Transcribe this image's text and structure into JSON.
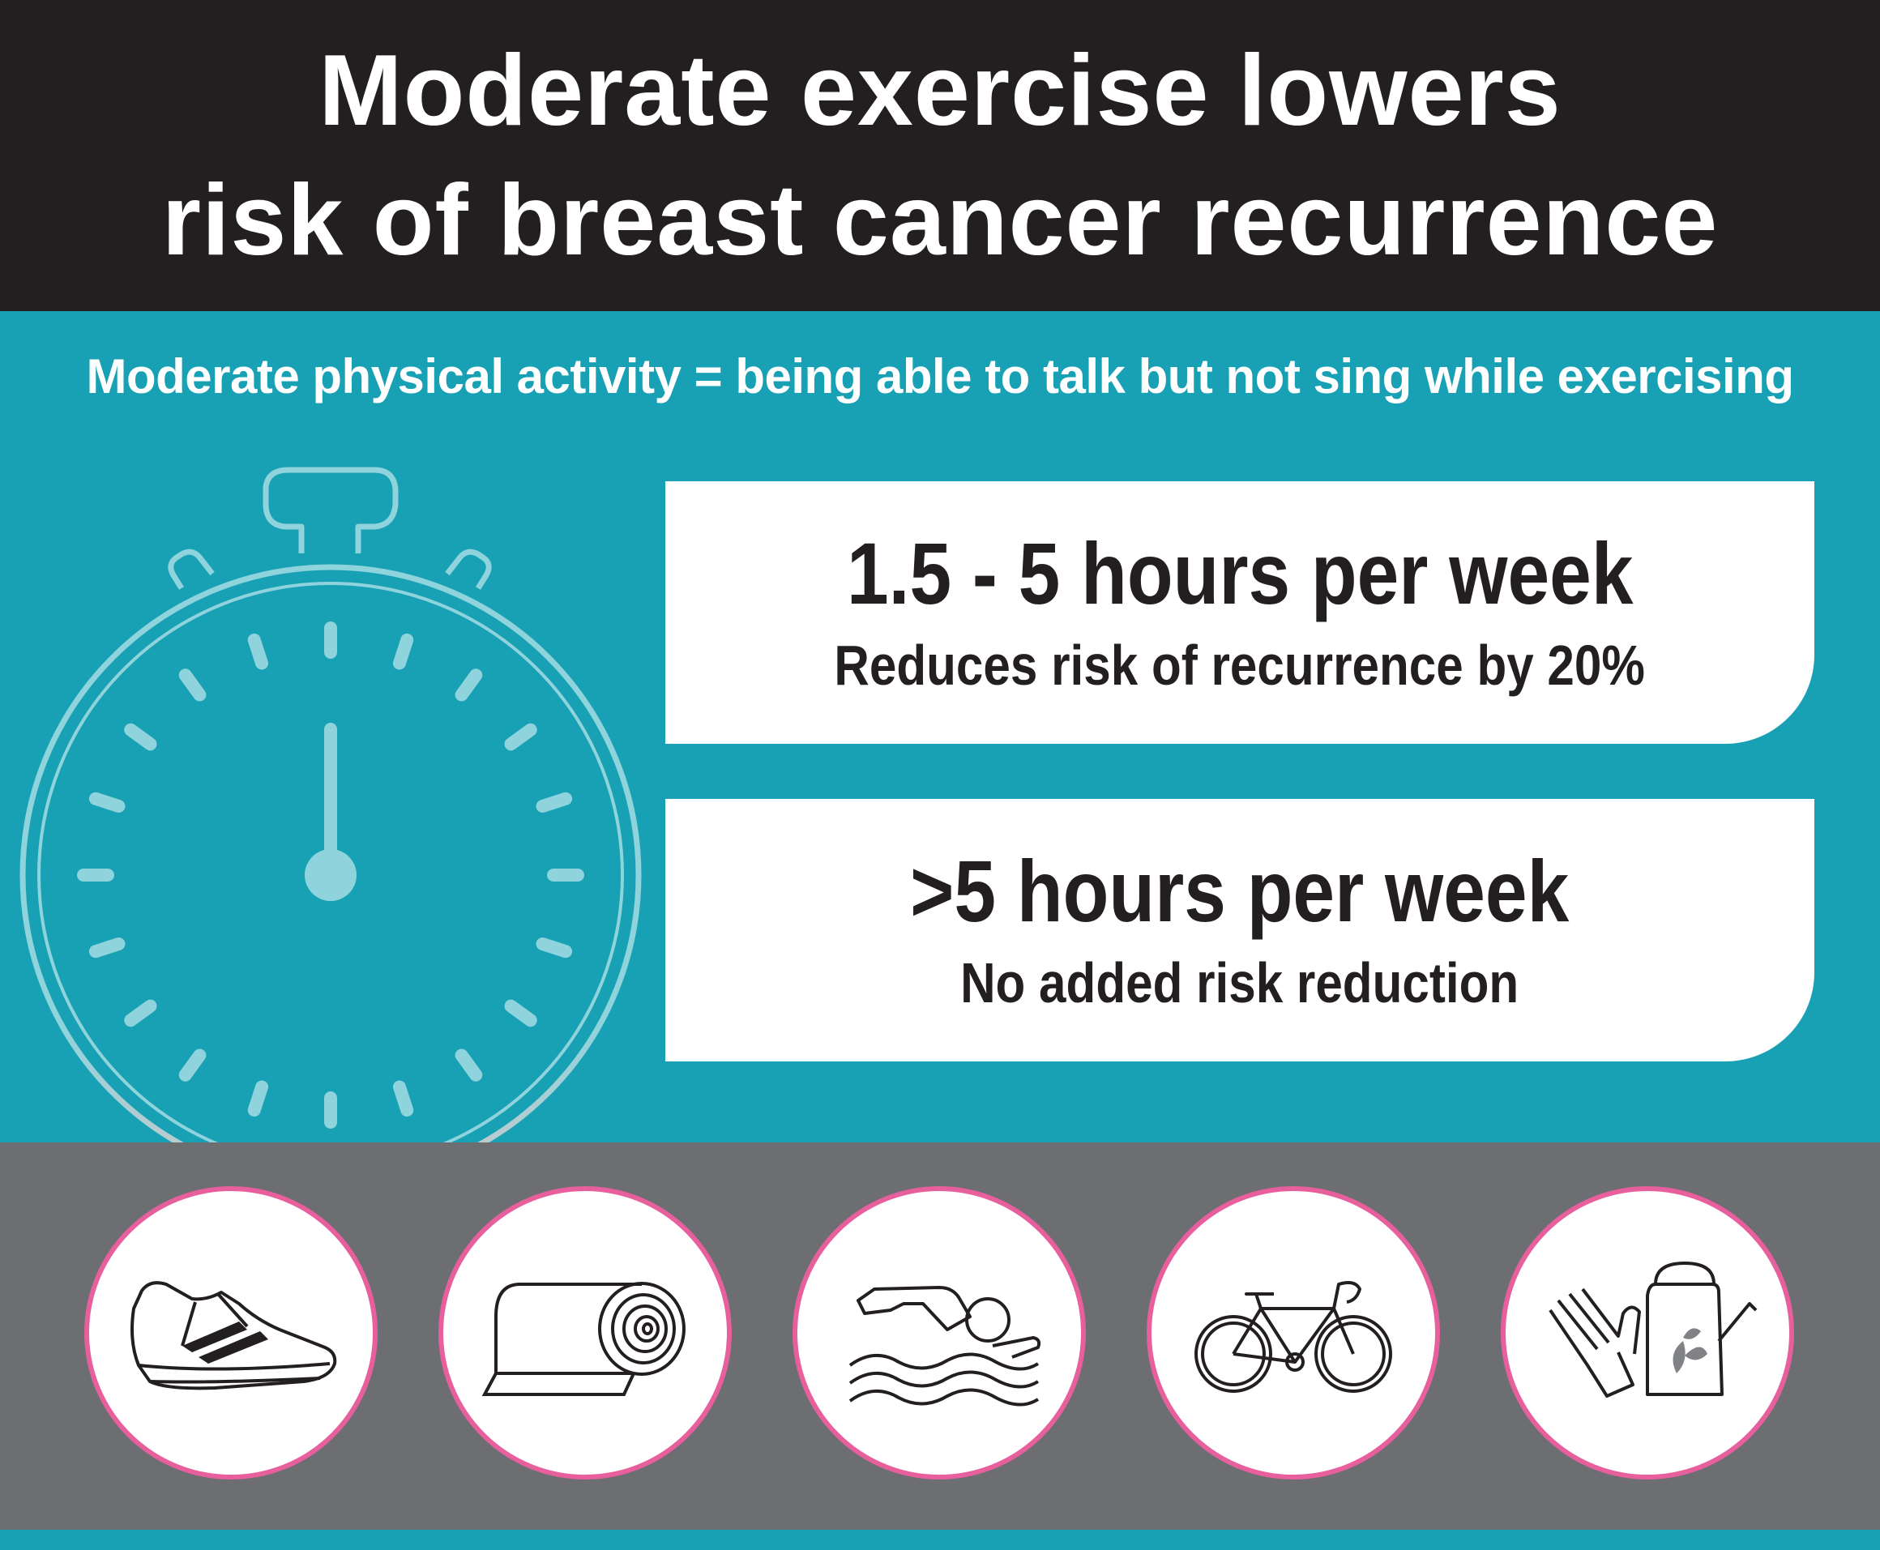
{
  "header": {
    "title_line1": "Moderate exercise lowers",
    "title_line2": "risk of breast cancer recurrence"
  },
  "definition": "Moderate physical activity = being able to talk but not sing while exercising",
  "cards": [
    {
      "headline": "1.5 - 5 hours per week",
      "detail": "Reduces risk of recurrence by 20%"
    },
    {
      "headline": ">5 hours per week",
      "detail": "No added risk reduction"
    }
  ],
  "stopwatch": {
    "icon": "stopwatch-icon"
  },
  "activities": [
    {
      "icon": "running-shoe-icon"
    },
    {
      "icon": "yoga-mat-icon"
    },
    {
      "icon": "swimmer-icon"
    },
    {
      "icon": "bicycle-icon"
    },
    {
      "icon": "gardening-icon"
    }
  ],
  "colors": {
    "teal": "#18a1b4",
    "dark": "#231f20",
    "grey": "#6d6e71",
    "pink": "#e75f9c",
    "stopwatch": "#8fd3dc"
  }
}
